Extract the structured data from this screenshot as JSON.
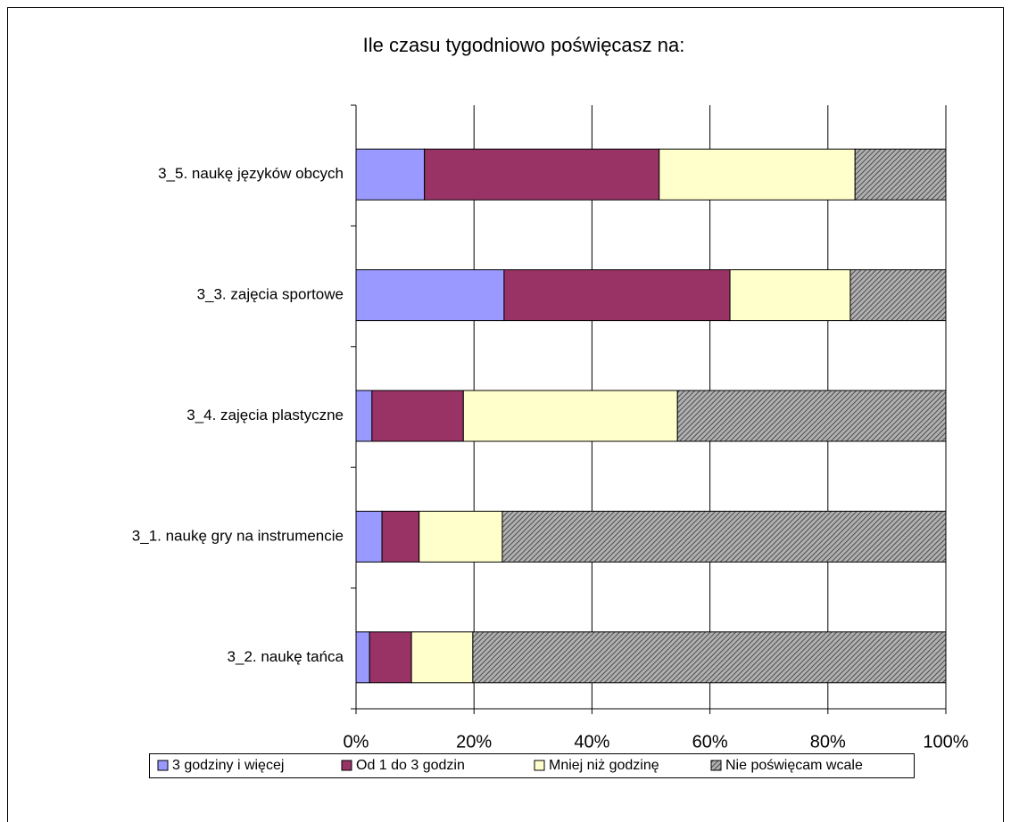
{
  "chart_data": {
    "type": "stacked-bar-horizontal",
    "title": "Ile czasu tygodniowo poświęcasz na:",
    "categories": [
      "3_5. naukę języków obcych",
      "3_3. zajęcia sportowe",
      "3_4. zajęcia plastyczne",
      "3_1. naukę gry na instrumencie",
      "3_2. naukę tańca"
    ],
    "series": [
      {
        "name": "3 godziny i więcej",
        "color": "#9999ff",
        "values": [
          11.6,
          25.1,
          2.7,
          4.4,
          2.3
        ]
      },
      {
        "name": "Od 1 do 3 godzin",
        "color": "#993366",
        "values": [
          39.8,
          38.3,
          15.5,
          6.3,
          7.1
        ]
      },
      {
        "name": "Mniej niż godzinę",
        "color": "#ffffcc",
        "values": [
          33.2,
          20.4,
          36.3,
          14.1,
          10.4
        ]
      },
      {
        "name": "Nie poświęcam wcale",
        "color": "#b0b0b0",
        "hatch": true,
        "values": [
          15.4,
          16.2,
          45.5,
          75.2,
          80.2
        ]
      }
    ],
    "xlim": [
      0,
      100
    ],
    "xticks": [
      {
        "value": 0,
        "label": "0%"
      },
      {
        "value": 20,
        "label": "20%"
      },
      {
        "value": 40,
        "label": "40%"
      },
      {
        "value": 60,
        "label": "60%"
      },
      {
        "value": 80,
        "label": "80%"
      },
      {
        "value": 100,
        "label": "100%"
      }
    ],
    "grid": true,
    "legend": "bottom"
  }
}
